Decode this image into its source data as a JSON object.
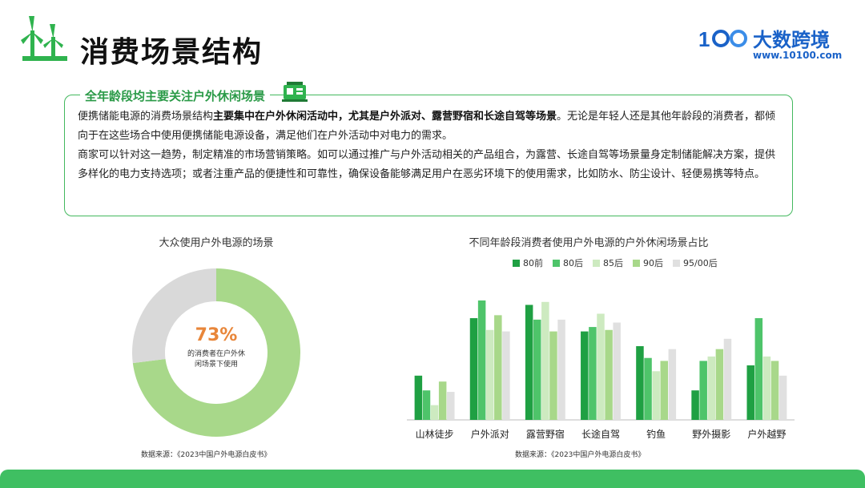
{
  "header": {
    "title": "消费场景结构",
    "brand_name": "大数跨境",
    "brand_url": "www.10100.com"
  },
  "summary": {
    "heading": "全年龄段均主要关注户外休闲场景",
    "p1_a": "便携储能电源的消费场景结构",
    "p1_b": "主要集中在户外休闲活动中，尤其是户外派对、露营野宿和长途自驾等场景",
    "p1_c": "。无论是年轻人还是其他年龄段的消费者，都倾向于在这些场合中使用便携储能电源设备，满足他们在户外活动中对电力的需求。",
    "p2": "商家可以针对这一趋势，制定精准的市场营销策略。如可以通过推广与户外活动相关的产品组合，为露营、长途自驾等场景量身定制储能解决方案，提供多样化的电力支持选项；或者注重产品的便捷性和可靠性，确保设备能够满足用户在恶劣环境下的使用需求，比如防水、防尘设计、轻便易携等特点。"
  },
  "colors": {
    "brand_green": "#2a9a47",
    "footer_green": "#3fbf62",
    "accent_orange": "#e8863a",
    "brand_blue": "#1a62c8"
  },
  "donut": {
    "title": "大众使用户外电源的场景",
    "center_value": "73%",
    "center_caption_1": "的消费者在户外休",
    "center_caption_2": "闲场景下使用",
    "source": "数据来源：《2023中国户外电源白皮书》"
  },
  "bar_chart": {
    "title": "不同年龄段消费者使用户外电源的户外休闲场景占比",
    "source": "数据来源：《2023中国户外电源白皮书》"
  },
  "chart_data": [
    {
      "type": "pie",
      "variant": "donut",
      "slices": [
        {
          "value": 73,
          "color": "#a8d88a"
        },
        {
          "value": 27,
          "color": "#d9d9d9"
        }
      ]
    },
    {
      "type": "bar",
      "categories": [
        "山林徒步",
        "户外派对",
        "露营野宿",
        "长途自驾",
        "钓鱼",
        "野外摄影",
        "户外越野"
      ],
      "series": [
        {
          "name": "80前",
          "color": "#1fa043",
          "values": [
            30,
            69,
            78,
            60,
            50,
            20,
            37
          ]
        },
        {
          "name": "80后",
          "color": "#4ec46a",
          "values": [
            20,
            81,
            68,
            63,
            42,
            40,
            69
          ]
        },
        {
          "name": "85后",
          "color": "#cdeac0",
          "values": [
            10,
            61,
            80,
            72,
            33,
            43,
            43
          ]
        },
        {
          "name": "90后",
          "color": "#a8d88a",
          "values": [
            26,
            71,
            60,
            61,
            40,
            48,
            40
          ]
        },
        {
          "name": "95/00后",
          "color": "#e0e0e0",
          "values": [
            19,
            60,
            68,
            66,
            48,
            55,
            30
          ]
        }
      ],
      "ylim": [
        0,
        100
      ],
      "grid": false,
      "legend": "top"
    }
  ]
}
